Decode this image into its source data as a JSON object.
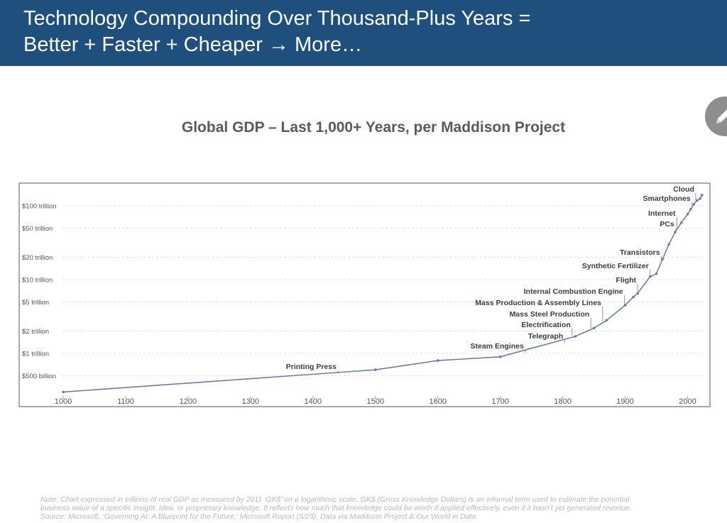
{
  "header": {
    "title_line1": "Technology Compounding Over Thousand-Plus Years =",
    "title_line2": "Better + Faster + Cheaper → More…"
  },
  "edit_button": {
    "icon": "pencil-icon"
  },
  "colors": {
    "header_bg": "#1e4f7d",
    "series": "#6b7fa6",
    "grid": "#d9d9d9",
    "axis_text": "#555555",
    "annotation_text": "#3c3c3c"
  },
  "chart_data": {
    "type": "line",
    "title": "Global GDP – Last 1,000+ Years, per Maddison Project",
    "xlabel": "",
    "ylabel": "",
    "y_scale": "log",
    "xlim": [
      1000,
      2023
    ],
    "ylim_trillions": [
      0.3,
      150
    ],
    "grid": "horizontal dashed",
    "legend": "none",
    "x_ticks": [
      1000,
      1100,
      1200,
      1300,
      1400,
      1500,
      1600,
      1700,
      1800,
      1900,
      2000
    ],
    "y_ticks": [
      {
        "value": 0.5,
        "label": "$500 billion"
      },
      {
        "value": 1,
        "label": "$1 trillion"
      },
      {
        "value": 2,
        "label": "$2 trillion"
      },
      {
        "value": 5,
        "label": "$5 trillion"
      },
      {
        "value": 10,
        "label": "$10 trillion"
      },
      {
        "value": 20,
        "label": "$20 trillion"
      },
      {
        "value": 50,
        "label": "$50 trillion"
      },
      {
        "value": 100,
        "label": "$100 trillion"
      }
    ],
    "series": [
      {
        "x": [
          1000,
          1500,
          1600,
          1700,
          1820,
          1850,
          1870,
          1900,
          1913,
          1920,
          1940,
          1950,
          1960,
          1970,
          1980,
          1990,
          2000,
          2005,
          2010,
          2015,
          2020,
          2023
        ],
        "y": [
          0.3,
          0.6,
          0.8,
          0.9,
          1.7,
          2.2,
          2.8,
          4.5,
          5.8,
          6.5,
          11,
          12,
          19,
          30,
          44,
          59,
          77,
          90,
          105,
          118,
          125,
          140
        ]
      }
    ],
    "annotations": [
      {
        "label": "Printing Press",
        "year": 1440
      },
      {
        "label": "Steam Engines",
        "year": 1740
      },
      {
        "label": "Telegraph",
        "year": 1803
      },
      {
        "label": "Electrification",
        "year": 1815
      },
      {
        "label": "Mass Steel Production",
        "year": 1845
      },
      {
        "label": "Mass Production & Assembly Lines",
        "year": 1864
      },
      {
        "label": "Internal Combustion Engine",
        "year": 1899
      },
      {
        "label": "Flight",
        "year": 1920
      },
      {
        "label": "Synthetic Fertilizer",
        "year": 1940
      },
      {
        "label": "Transistors",
        "year": 1958
      },
      {
        "label": "PCs",
        "year": 1981
      },
      {
        "label": "Internet",
        "year": 1983
      },
      {
        "label": "Smartphones",
        "year": 2007
      },
      {
        "label": "Cloud",
        "year": 2013
      }
    ]
  },
  "footnote": {
    "line1": "Note: Chart expressed in trillions of real GDP as measured by 2011 ‘GK$’ on a logarithmic scale. GK$ (Gross Knowledge Dollars) is an informal term used to estimate the potential",
    "line2": "business value of a specific insight, idea, or proprietary knowledge. It reflects how much that knowledge could be worth if applied effectively, even if it hasn’t yet generated revenue.",
    "line3": "Source: Microsoft, ‘Governing AI: A Blueprint for the Future,’ Microsoft Report (5/23); Data via Maddison Project & Our World in Data"
  }
}
